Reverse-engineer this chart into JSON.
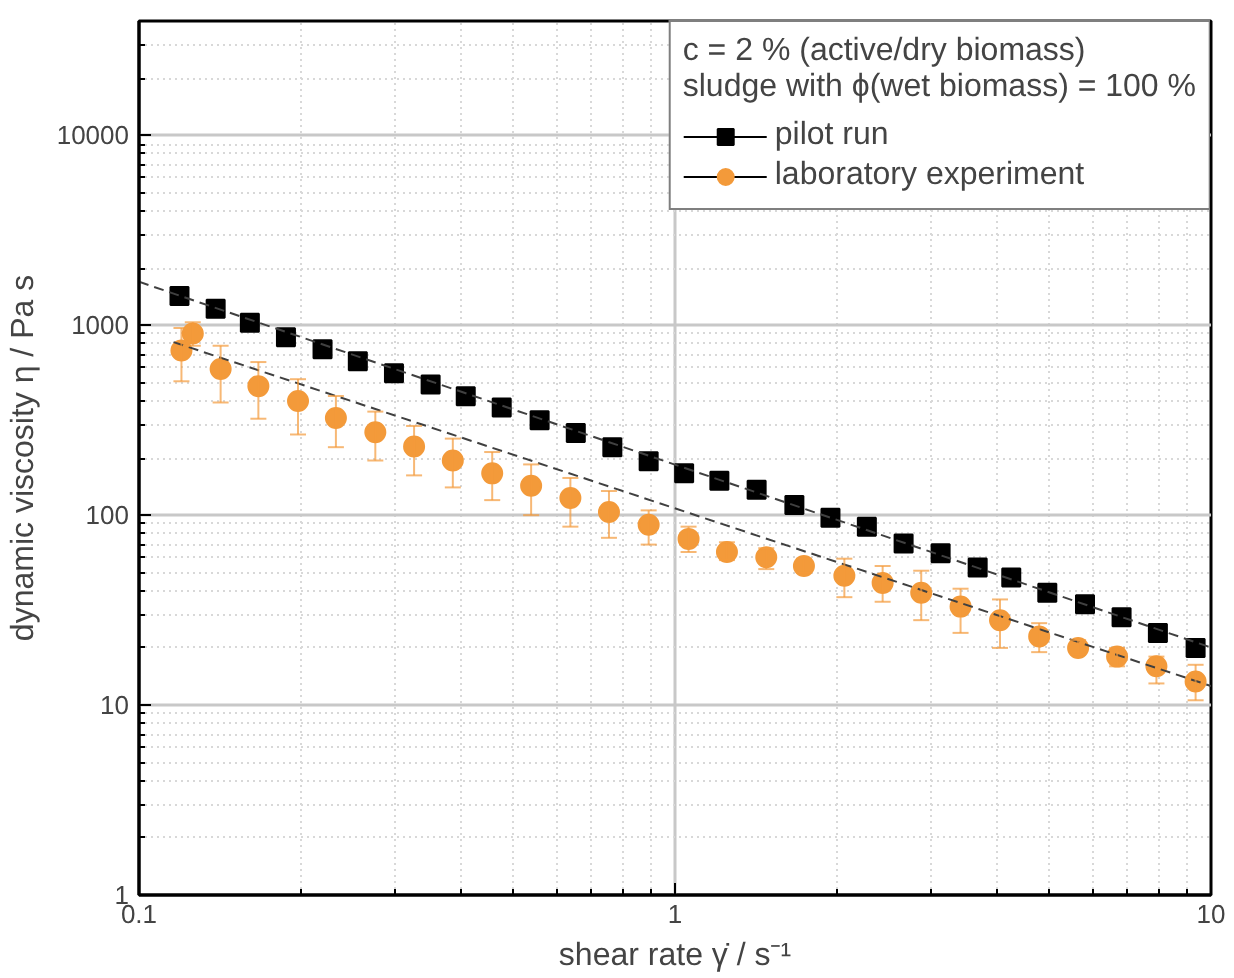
{
  "chart_data": {
    "type": "scatter",
    "xlabel": "shear rate γ̇ / s⁻¹",
    "ylabel": "dynamic viscosity η / Pa s",
    "legend_title": "c = 2 % (active/dry biomass)\nsludge with ϕ(wet biomass) = 100 %",
    "log": "xy",
    "grid": true,
    "legend": "top right",
    "xlim": [
      0.1,
      10
    ],
    "xticks": [
      0.1,
      1,
      10
    ],
    "ylim": [
      1,
      40000
    ],
    "yticks": [
      1,
      10,
      100,
      1000,
      10000
    ],
    "series": [
      {
        "name": "pilot run",
        "marker": "square",
        "color": "#000000",
        "x": [
          0.119,
          0.139,
          0.161,
          0.188,
          0.22,
          0.256,
          0.299,
          0.35,
          0.407,
          0.475,
          0.559,
          0.653,
          0.764,
          0.893,
          1.04,
          1.21,
          1.42,
          1.67,
          1.95,
          2.28,
          2.67,
          3.13,
          3.67,
          4.24,
          4.95,
          5.82,
          6.81,
          7.96,
          9.36
        ],
        "values": [
          1425,
          1220,
          1030,
          865,
          747,
          647,
          558,
          487,
          423,
          369,
          316,
          271,
          228,
          192,
          166,
          152,
          136,
          113,
          97,
          87,
          71,
          63,
          53,
          47,
          39,
          34,
          29,
          24,
          20
        ]
      },
      {
        "name": "laboratory experiment",
        "marker": "circle",
        "color": "#f39a3a",
        "x": [
          0.12,
          0.126,
          0.142,
          0.167,
          0.198,
          0.233,
          0.276,
          0.326,
          0.385,
          0.456,
          0.539,
          0.638,
          0.753,
          0.893,
          1.06,
          1.25,
          1.48,
          1.74,
          2.07,
          2.44,
          2.88,
          3.41,
          4.04,
          4.78,
          5.65,
          6.68,
          7.91,
          9.36
        ],
        "values": [
          736,
          904,
          588,
          478,
          399,
          325,
          273,
          230,
          194,
          166,
          143,
          123,
          104,
          89,
          75,
          64,
          60,
          54,
          48,
          44,
          39,
          33,
          28,
          23,
          20,
          18,
          16,
          13.3
        ],
        "errors": [
          [
            507,
            967
          ],
          [
            780,
            1037
          ],
          [
            392,
            780
          ],
          [
            322,
            640
          ],
          [
            266,
            520
          ],
          [
            228,
            424
          ],
          [
            194,
            351
          ],
          [
            162,
            295
          ],
          [
            140,
            253
          ],
          [
            120,
            215
          ],
          [
            100,
            185
          ],
          [
            87,
            157
          ],
          [
            76,
            134
          ],
          [
            70,
            106
          ],
          [
            64,
            87
          ],
          [
            58,
            72
          ],
          [
            52,
            67
          ],
          [
            50,
            59
          ],
          [
            37,
            59
          ],
          [
            35,
            54
          ],
          [
            28,
            51
          ],
          [
            24,
            41
          ],
          [
            20,
            36
          ],
          [
            19,
            27
          ],
          [
            18.5,
            22
          ],
          [
            16,
            20
          ],
          [
            13,
            18
          ],
          [
            10.6,
            16.3
          ]
        ]
      },
      {
        "type": "line",
        "line_style": "dashed",
        "color": "#404040",
        "x": [
          0.1,
          10
        ],
        "values": [
          1694,
          20.1
        ]
      },
      {
        "type": "line",
        "line_style": "dashed",
        "color": "#404040",
        "x": [
          0.116,
          10
        ],
        "values": [
          815,
          12.6
        ]
      }
    ]
  }
}
